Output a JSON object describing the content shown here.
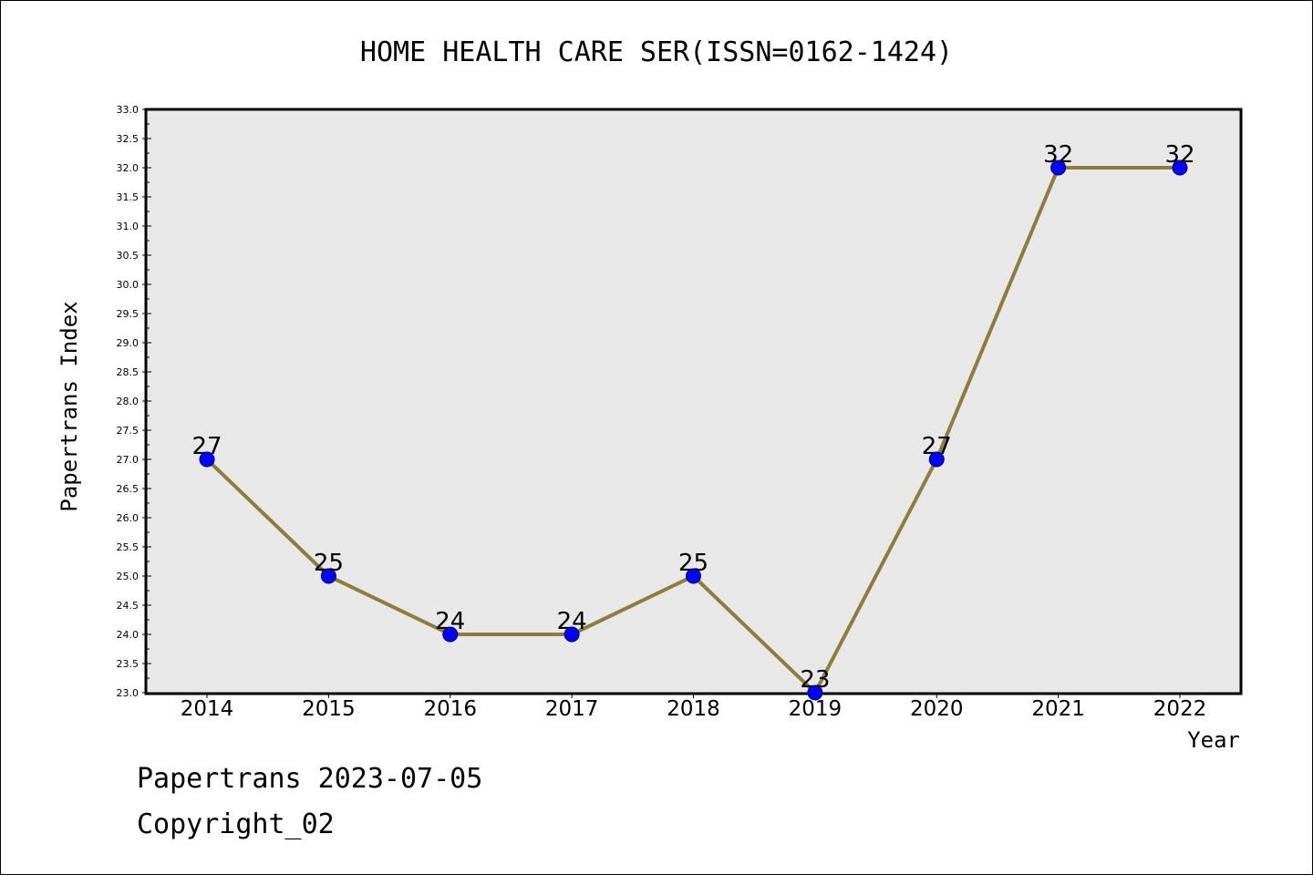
{
  "chart_data": {
    "type": "line",
    "title": "HOME HEALTH CARE SER(ISSN=0162-1424)",
    "xlabel": "Year",
    "ylabel": "Papertrans Index",
    "categories": [
      "2014",
      "2015",
      "2016",
      "2017",
      "2018",
      "2019",
      "2020",
      "2021",
      "2022"
    ],
    "values": [
      27,
      25,
      24,
      24,
      25,
      23,
      27,
      32,
      32
    ],
    "data_labels": [
      "27",
      "25",
      "24",
      "24",
      "25",
      "23",
      "27",
      "32",
      "32"
    ],
    "ylim": [
      23.0,
      33.0
    ],
    "yticks": [
      "23.0",
      "23.5",
      "24.0",
      "24.5",
      "25.0",
      "25.5",
      "26.0",
      "26.5",
      "27.0",
      "27.5",
      "28.0",
      "28.5",
      "29.0",
      "29.5",
      "30.0",
      "30.5",
      "31.0",
      "31.5",
      "32.0",
      "32.5",
      "33.0"
    ],
    "grid": false,
    "line_color": "#8c7d3c",
    "marker_color": "#0000ff",
    "plot_background": "#e8e8e8"
  },
  "footer": {
    "line1": "Papertrans 2023-07-05",
    "line2": "Copyright_02"
  }
}
